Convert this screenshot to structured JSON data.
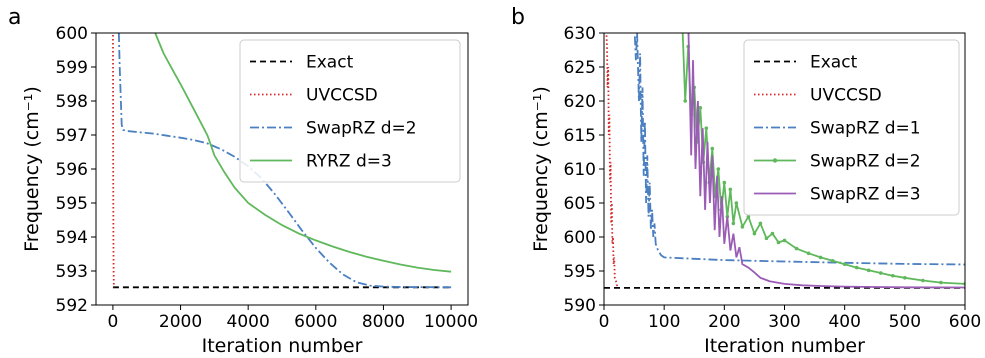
{
  "chart_data": [
    {
      "type": "line",
      "panel_label": "a",
      "xlabel": "Iteration number",
      "ylabel": "Frequency (cm⁻¹)",
      "xlim": [
        -500,
        10500
      ],
      "ylim": [
        592,
        600
      ],
      "xticks": [
        0,
        2000,
        4000,
        6000,
        8000,
        10000
      ],
      "yticks": [
        592,
        593,
        594,
        595,
        596,
        597,
        598,
        599,
        600
      ],
      "legend_position": "top-right",
      "grid": false,
      "series": [
        {
          "name": "Exact",
          "color": "#000000",
          "style": "dashed",
          "x": [
            0,
            10000
          ],
          "y": [
            592.52,
            592.52
          ]
        },
        {
          "name": "UVCCSD",
          "color": "#d62728",
          "style": "dotted",
          "x": [
            0,
            5,
            10,
            15,
            20,
            30
          ],
          "y": [
            601,
            598,
            596,
            594,
            593,
            592.52
          ]
        },
        {
          "name": "SwapRZ d=2",
          "color": "#4a7fc1",
          "style": "dashdot",
          "x": [
            150,
            200,
            260,
            300,
            400,
            800,
            1200,
            1600,
            2000,
            2400,
            2800,
            3200,
            3600,
            4000,
            4400,
            4800,
            5200,
            5600,
            6000,
            6400,
            6800,
            7200,
            7600,
            8000,
            8500,
            10000
          ],
          "y": [
            601,
            599,
            597.3,
            597.15,
            597.12,
            597.08,
            597.04,
            596.98,
            596.92,
            596.85,
            596.75,
            596.58,
            596.36,
            596.08,
            595.72,
            595.25,
            594.72,
            594.18,
            593.68,
            593.25,
            592.9,
            592.67,
            592.57,
            592.54,
            592.53,
            592.52
          ]
        },
        {
          "name": "RYRZ d=3",
          "color": "#5fb85b",
          "style": "solid",
          "x": [
            1250,
            1500,
            1800,
            2000,
            2200,
            2500,
            2800,
            3000,
            3300,
            3600,
            4000,
            4500,
            5000,
            5500,
            6000,
            6500,
            7000,
            7500,
            8000,
            8500,
            9000,
            9500,
            10000
          ],
          "y": [
            600,
            599.4,
            598.85,
            598.5,
            598.12,
            597.55,
            596.98,
            596.4,
            595.9,
            595.45,
            595.0,
            594.65,
            594.35,
            594.1,
            593.9,
            593.72,
            593.56,
            593.42,
            593.3,
            593.19,
            593.1,
            593.03,
            592.98
          ]
        }
      ]
    },
    {
      "type": "line",
      "panel_label": "b",
      "xlabel": "Iteration number",
      "ylabel": "Frequency (cm⁻¹)",
      "xlim": [
        0,
        600
      ],
      "ylim": [
        590,
        630
      ],
      "xticks": [
        0,
        100,
        200,
        300,
        400,
        500,
        600
      ],
      "yticks": [
        590,
        595,
        600,
        605,
        610,
        615,
        620,
        625,
        630
      ],
      "legend_position": "top-right",
      "grid": false,
      "series": [
        {
          "name": "Exact",
          "color": "#000000",
          "style": "dashed",
          "x": [
            0,
            600
          ],
          "y": [
            592.52,
            592.52
          ]
        },
        {
          "name": "UVCCSD",
          "color": "#d62728",
          "style": "dotted",
          "x": [
            3,
            5,
            6,
            7,
            8,
            9,
            10,
            11,
            12,
            13,
            14,
            15,
            16,
            17,
            18,
            20,
            22,
            25
          ],
          "y": [
            632,
            628,
            622,
            625,
            615,
            618,
            608,
            611,
            602,
            605,
            599,
            600,
            596,
            597,
            594,
            593.5,
            592.8,
            592.52
          ]
        },
        {
          "name": "SwapRZ d=1",
          "color": "#4a7fc1",
          "style": "dashdot",
          "x": [
            50,
            53,
            55,
            58,
            60,
            62,
            64,
            66,
            68,
            70,
            72,
            74,
            76,
            78,
            80,
            82,
            84,
            86,
            90,
            95,
            100,
            150,
            200,
            300,
            400,
            500,
            600
          ],
          "y": [
            632,
            626,
            630,
            620,
            627,
            614,
            622,
            609,
            617,
            605,
            612,
            603,
            608,
            601,
            604,
            600,
            602,
            599,
            598,
            597.3,
            597.0,
            596.8,
            596.6,
            596.4,
            596.2,
            596.05,
            595.95
          ]
        },
        {
          "name": "SwapRZ d=2",
          "color": "#5fb85b",
          "style": "solid-marker",
          "x": [
            130,
            135,
            140,
            145,
            150,
            155,
            160,
            165,
            170,
            175,
            180,
            185,
            190,
            195,
            200,
            205,
            210,
            215,
            220,
            230,
            240,
            250,
            260,
            270,
            280,
            290,
            300,
            320,
            340,
            360,
            380,
            400,
            420,
            440,
            460,
            480,
            500,
            530,
            560,
            600
          ],
          "y": [
            632,
            620,
            628,
            618,
            622,
            614,
            619,
            611,
            616,
            608,
            613,
            606,
            610,
            604,
            608,
            603,
            607,
            602,
            605,
            601.5,
            603,
            600.5,
            602,
            599.8,
            600.5,
            599.2,
            599.5,
            598.3,
            597.6,
            597.0,
            596.5,
            596.0,
            595.5,
            595.1,
            594.7,
            594.3,
            594.0,
            593.6,
            593.3,
            593.1
          ]
        },
        {
          "name": "SwapRZ d=3",
          "color": "#9a5cb4",
          "style": "solid",
          "x": [
            140,
            145,
            148,
            152,
            156,
            160,
            164,
            168,
            172,
            176,
            180,
            184,
            188,
            192,
            196,
            200,
            205,
            210,
            215,
            220,
            225,
            230,
            240,
            250,
            260,
            275,
            300,
            330,
            360,
            400,
            450,
            500,
            600
          ],
          "y": [
            632,
            612,
            626,
            610,
            620,
            606,
            616,
            604,
            614,
            605,
            612,
            601,
            609,
            600,
            606,
            599,
            603,
            598,
            600.5,
            597,
            598.5,
            596,
            595.5,
            594.8,
            594.0,
            593.5,
            593.1,
            592.9,
            592.8,
            592.7,
            592.65,
            592.6,
            592.58
          ]
        }
      ]
    }
  ]
}
